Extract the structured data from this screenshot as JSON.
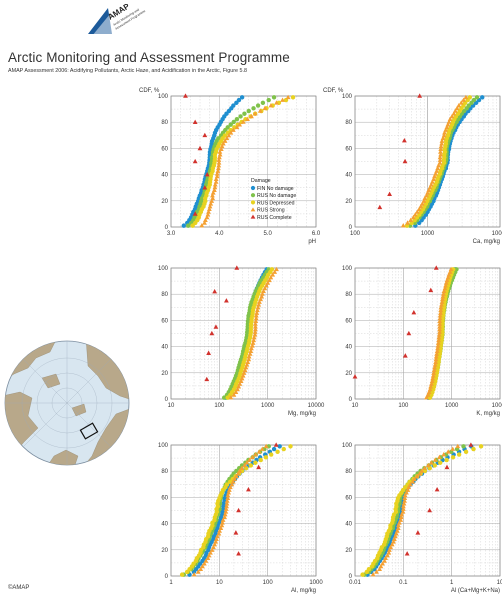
{
  "header": {
    "org_title": "Arctic Monitoring and Assessment Programme",
    "subtitle": "AMAP Assessment 2006: Acidifying Pollutants, Arctic Haze, and Acidification in the Arctic, Figure 5.8",
    "logo_text": "AMAP",
    "logo_tagline": "Arctic Monitoring and Assessment Programme"
  },
  "credit": "©AMAP",
  "colors": {
    "fin_no_damage": "#1f8fd0",
    "rus_no_damage": "#7fc24a",
    "rus_depressed": "#e8d21f",
    "rus_strong": "#f4a032",
    "rus_complete": "#d2322d",
    "grid": "#c6c6c6",
    "map_land": "#b8a88a",
    "map_ocean": "#d8e6f0"
  },
  "legend": {
    "title": "Damage",
    "entries": [
      {
        "label": "FIN No damage",
        "color": "#1f8fd0",
        "marker": "circle"
      },
      {
        "label": "RUS No damage",
        "color": "#7fc24a",
        "marker": "circle"
      },
      {
        "label": "RUS Depressed",
        "color": "#e8d21f",
        "marker": "circle"
      },
      {
        "label": "RUS Strong",
        "color": "#f4a032",
        "marker": "triangle"
      },
      {
        "label": "RUS Complete",
        "color": "#d2322d",
        "marker": "triangle"
      }
    ]
  },
  "chart_data": [
    {
      "type": "scatter",
      "ylabel": "CDF, %",
      "xlabel": "pH",
      "xscale": "linear",
      "xlim": [
        3.0,
        6.0
      ],
      "ylim": [
        0,
        100
      ],
      "xticks": [
        "3.0",
        "4.0",
        "5.0",
        "6.0"
      ],
      "yticks": [
        "0",
        "20",
        "40",
        "60",
        "80",
        "100"
      ],
      "grid": true,
      "legend_position": "inside-lower-right",
      "series": [
        {
          "name": "FIN No damage",
          "range": [
            3.2,
            4.5
          ],
          "median": 3.8
        },
        {
          "name": "RUS No damage",
          "range": [
            3.3,
            5.2
          ],
          "median": 3.85
        },
        {
          "name": "RUS Depressed",
          "range": [
            3.4,
            5.6
          ],
          "median": 3.9
        },
        {
          "name": "RUS Strong",
          "range": [
            3.6,
            5.5
          ],
          "median": 4.0
        },
        {
          "name": "RUS Complete",
          "points": [
            [
              3.5,
              10
            ],
            [
              3.7,
              30
            ],
            [
              3.75,
              40
            ],
            [
              3.5,
              50
            ],
            [
              3.6,
              60
            ],
            [
              3.7,
              70
            ],
            [
              3.5,
              80
            ],
            [
              3.3,
              100
            ]
          ]
        }
      ]
    },
    {
      "type": "scatter",
      "ylabel": "CDF, %",
      "xlabel": "Ca, mg/kg",
      "xscale": "log",
      "xlim": [
        100,
        10000
      ],
      "ylim": [
        0,
        100
      ],
      "xticks": [
        "100",
        "1000",
        "10000"
      ],
      "yticks": [
        "0",
        "20",
        "40",
        "60",
        "80",
        "100"
      ],
      "grid": true,
      "series": [
        {
          "name": "FIN No damage",
          "range": [
            600,
            6000
          ],
          "median": 1900
        },
        {
          "name": "RUS No damage",
          "range": [
            500,
            5000
          ],
          "median": 1800
        },
        {
          "name": "RUS Depressed",
          "range": [
            450,
            4000
          ],
          "median": 1700
        },
        {
          "name": "RUS Strong",
          "range": [
            400,
            3500
          ],
          "median": 1500
        },
        {
          "name": "RUS Complete",
          "points": [
            [
              220,
              15
            ],
            [
              300,
              25
            ],
            [
              490,
              50
            ],
            [
              480,
              66
            ],
            [
              780,
              100
            ]
          ]
        }
      ]
    },
    {
      "type": "scatter",
      "ylabel": "",
      "xlabel": "Mg, mg/kg",
      "xscale": "log",
      "xlim": [
        10,
        10000
      ],
      "ylim": [
        0,
        100
      ],
      "xticks": [
        "10",
        "100",
        "1000",
        "10000"
      ],
      "yticks": [
        "0",
        "20",
        "40",
        "60",
        "80",
        "100"
      ],
      "grid": true,
      "series": [
        {
          "name": "FIN No damage",
          "range": [
            120,
            1000
          ],
          "median": 400
        },
        {
          "name": "RUS No damage",
          "range": [
            110,
            1100
          ],
          "median": 380
        },
        {
          "name": "RUS Depressed",
          "range": [
            130,
            1300
          ],
          "median": 450
        },
        {
          "name": "RUS Strong",
          "range": [
            150,
            1600
          ],
          "median": 550
        },
        {
          "name": "RUS Complete",
          "points": [
            [
              55,
              15
            ],
            [
              60,
              35
            ],
            [
              70,
              50
            ],
            [
              85,
              55
            ],
            [
              140,
              75
            ],
            [
              80,
              82
            ],
            [
              230,
              100
            ]
          ]
        }
      ]
    },
    {
      "type": "scatter",
      "ylabel": "",
      "xlabel": "K, mg/kg",
      "xscale": "log",
      "xlim": [
        10,
        10000
      ],
      "ylim": [
        0,
        100
      ],
      "xticks": [
        "10",
        "100",
        "1000",
        "10000"
      ],
      "yticks": [
        "0",
        "20",
        "40",
        "60",
        "80",
        "100"
      ],
      "grid": true,
      "series": [
        {
          "name": "FIN No damage",
          "range": [
            300,
            1200
          ],
          "median": 620
        },
        {
          "name": "RUS No damage",
          "range": [
            320,
            1300
          ],
          "median": 650
        },
        {
          "name": "RUS Depressed",
          "range": [
            330,
            1100
          ],
          "median": 640
        },
        {
          "name": "RUS Strong",
          "range": [
            280,
            1000
          ],
          "median": 560
        },
        {
          "name": "RUS Complete",
          "points": [
            [
              10,
              17
            ],
            [
              110,
              33
            ],
            [
              130,
              50
            ],
            [
              165,
              66
            ],
            [
              370,
              83
            ],
            [
              480,
              100
            ]
          ]
        }
      ]
    },
    {
      "type": "scatter",
      "ylabel": "",
      "xlabel": "Al, mg/kg",
      "xscale": "log",
      "xlim": [
        1,
        1000
      ],
      "ylim": [
        0,
        100
      ],
      "xticks": [
        "1",
        "10",
        "100",
        "1000"
      ],
      "yticks": [
        "0",
        "20",
        "40",
        "60",
        "80",
        "100"
      ],
      "grid": true,
      "series": [
        {
          "name": "FIN No damage",
          "range": [
            2,
            200
          ],
          "median": 12
        },
        {
          "name": "RUS No damage",
          "range": [
            1.5,
            120
          ],
          "median": 10
        },
        {
          "name": "RUS Depressed",
          "range": [
            1.4,
            350
          ],
          "median": 9
        },
        {
          "name": "RUS Strong",
          "range": [
            2.5,
            100
          ],
          "median": 14
        },
        {
          "name": "RUS Complete",
          "points": [
            [
              25,
              17
            ],
            [
              22,
              33
            ],
            [
              25,
              50
            ],
            [
              40,
              66
            ],
            [
              65,
              83
            ],
            [
              150,
              100
            ]
          ]
        }
      ]
    },
    {
      "type": "scatter",
      "ylabel": "",
      "xlabel": "Al (Ca+Mg+K+Na)",
      "xscale": "log",
      "xlim": [
        0.01,
        10
      ],
      "ylim": [
        0,
        100
      ],
      "xticks": [
        "0.01",
        "0.1",
        "1",
        "10"
      ],
      "yticks": [
        "0",
        "20",
        "40",
        "60",
        "80",
        "100"
      ],
      "grid": true,
      "series": [
        {
          "name": "FIN No damage",
          "range": [
            0.015,
            3
          ],
          "median": 0.09
        },
        {
          "name": "RUS No damage",
          "range": [
            0.013,
            2
          ],
          "median": 0.08
        },
        {
          "name": "RUS Depressed",
          "range": [
            0.012,
            5
          ],
          "median": 0.07
        },
        {
          "name": "RUS Strong",
          "range": [
            0.02,
            1.5
          ],
          "median": 0.1
        },
        {
          "name": "RUS Complete",
          "points": [
            [
              0.12,
              17
            ],
            [
              0.2,
              33
            ],
            [
              0.35,
              50
            ],
            [
              0.5,
              66
            ],
            [
              0.8,
              83
            ],
            [
              2.5,
              100
            ]
          ]
        }
      ]
    }
  ]
}
